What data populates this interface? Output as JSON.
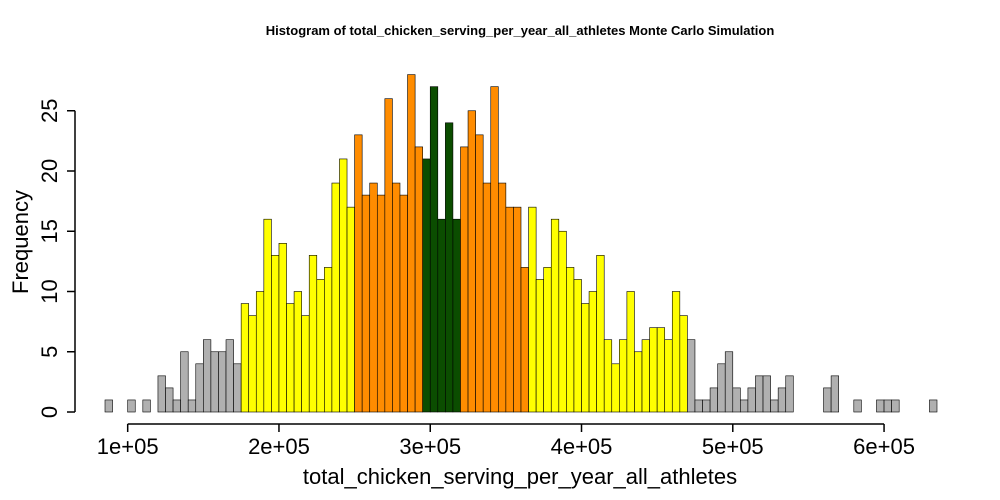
{
  "chart_data": {
    "type": "bar",
    "title": "Histogram of  total_chicken_serving_per_year_all_athletes  Monte Carlo Simulation",
    "xlabel": "total_chicken_serving_per_year_all_athletes",
    "ylabel": "Frequency",
    "bin_width": 5000,
    "xlim": [
      85000,
      635000
    ],
    "ylim": [
      0,
      28
    ],
    "x_ticks": [
      100000,
      200000,
      300000,
      400000,
      500000,
      600000
    ],
    "x_tick_labels": [
      "1e+05",
      "2e+05",
      "3e+05",
      "4e+05",
      "5e+05",
      "6e+05"
    ],
    "y_ticks": [
      0,
      5,
      10,
      15,
      20,
      25
    ],
    "y_tick_labels": [
      "0",
      "5",
      "10",
      "15",
      "20",
      "25"
    ],
    "colors": {
      "tail": "#b0b0b0",
      "outer": "#ffff00",
      "inner": "#ff8c00",
      "center": "#0b4d00"
    },
    "color_bands": [
      {
        "from": 85000,
        "to": 175000,
        "color": "tail"
      },
      {
        "from": 175000,
        "to": 250000,
        "color": "outer"
      },
      {
        "from": 250000,
        "to": 295000,
        "color": "inner"
      },
      {
        "from": 295000,
        "to": 320000,
        "color": "center"
      },
      {
        "from": 320000,
        "to": 365000,
        "color": "inner"
      },
      {
        "from": 365000,
        "to": 470000,
        "color": "outer"
      },
      {
        "from": 470000,
        "to": 635000,
        "color": "tail"
      }
    ],
    "bin_starts": [
      85000,
      90000,
      95000,
      100000,
      105000,
      110000,
      115000,
      120000,
      125000,
      130000,
      135000,
      140000,
      145000,
      150000,
      155000,
      160000,
      165000,
      170000,
      175000,
      180000,
      185000,
      190000,
      195000,
      200000,
      205000,
      210000,
      215000,
      220000,
      225000,
      230000,
      235000,
      240000,
      245000,
      250000,
      255000,
      260000,
      265000,
      270000,
      275000,
      280000,
      285000,
      290000,
      295000,
      300000,
      305000,
      310000,
      315000,
      320000,
      325000,
      330000,
      335000,
      340000,
      345000,
      350000,
      355000,
      360000,
      365000,
      370000,
      375000,
      380000,
      385000,
      390000,
      395000,
      400000,
      405000,
      410000,
      415000,
      420000,
      425000,
      430000,
      435000,
      440000,
      445000,
      450000,
      455000,
      460000,
      465000,
      470000,
      475000,
      480000,
      485000,
      490000,
      495000,
      500000,
      505000,
      510000,
      515000,
      520000,
      525000,
      530000,
      535000,
      540000,
      545000,
      550000,
      555000,
      560000,
      565000,
      570000,
      575000,
      580000,
      585000,
      590000,
      595000,
      600000,
      605000,
      610000,
      615000,
      620000,
      625000,
      630000
    ],
    "values": [
      1,
      0,
      0,
      1,
      0,
      1,
      0,
      3,
      2,
      1,
      5,
      1,
      4,
      6,
      5,
      5,
      6,
      4,
      9,
      8,
      10,
      16,
      13,
      14,
      9,
      10,
      8,
      13,
      11,
      12,
      19,
      21,
      17,
      23,
      18,
      19,
      18,
      26,
      19,
      18,
      28,
      22,
      21,
      27,
      16,
      24,
      16,
      22,
      25,
      23,
      19,
      27,
      19,
      17,
      17,
      12,
      17,
      11,
      12,
      16,
      15,
      12,
      11,
      9,
      10,
      13,
      6,
      4,
      6,
      10,
      5,
      6,
      7,
      7,
      6,
      10,
      8,
      6,
      1,
      1,
      2,
      4,
      5,
      2,
      1,
      2,
      3,
      3,
      1,
      2,
      3,
      0,
      0,
      0,
      0,
      2,
      3,
      0,
      0,
      1,
      0,
      0,
      1,
      1,
      1,
      0,
      0,
      0,
      0,
      1
    ]
  }
}
